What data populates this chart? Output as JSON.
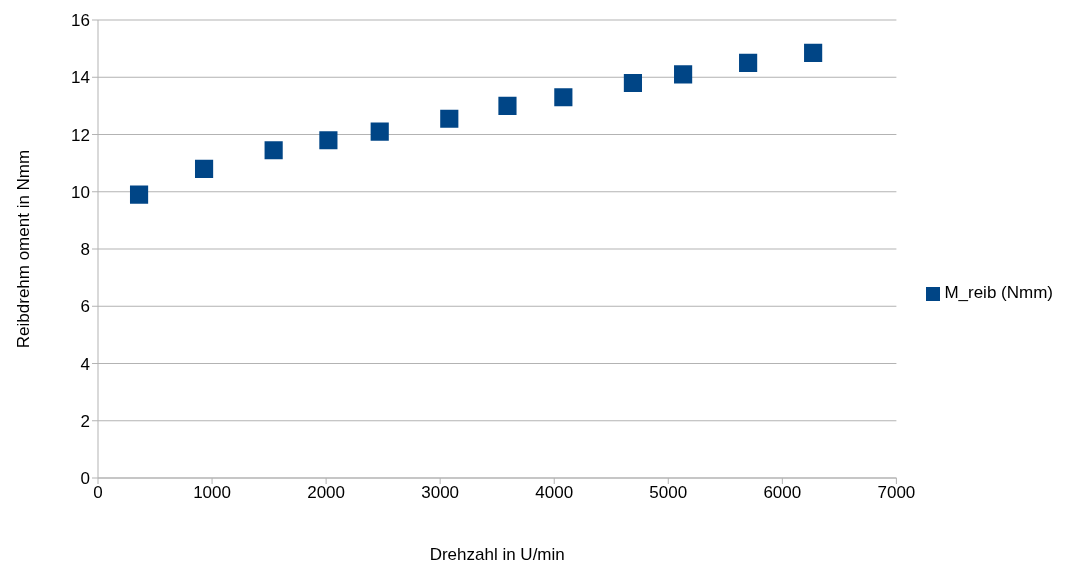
{
  "chart_data": {
    "type": "scatter",
    "xlabel": "Drehzahl in U/min",
    "ylabel": "Reibdrehm oment in Nmm",
    "x": [
      360,
      930,
      1540,
      2020,
      2470,
      3080,
      3590,
      4080,
      4690,
      5130,
      5700,
      6270
    ],
    "series": [
      {
        "name": "M_reib (Nmm)",
        "color": "#004586",
        "values": [
          9.9,
          10.8,
          11.45,
          11.8,
          12.1,
          12.55,
          13.0,
          13.3,
          13.8,
          14.1,
          14.5,
          14.85
        ]
      }
    ],
    "xlim": [
      0,
      7000
    ],
    "xticks": [
      0,
      1000,
      2000,
      3000,
      4000,
      5000,
      6000,
      7000
    ],
    "ylim": [
      0,
      16
    ],
    "yticks": [
      0,
      2,
      4,
      6,
      8,
      10,
      12,
      14,
      16
    ],
    "grid": "y",
    "legend": "right",
    "marker": "square"
  }
}
